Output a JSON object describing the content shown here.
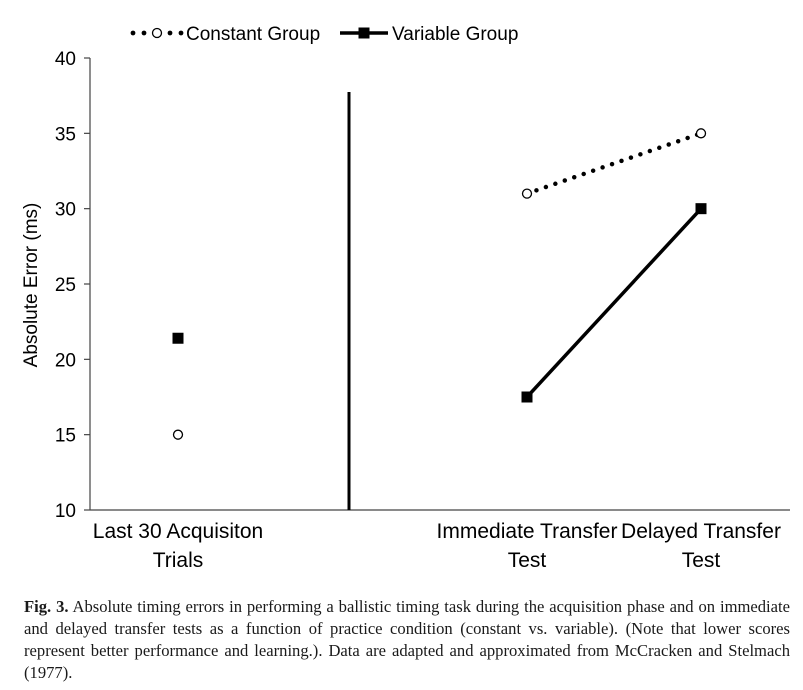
{
  "chart_data": {
    "type": "line",
    "title": "",
    "xlabel": "",
    "ylabel": "Absolute Error (ms)",
    "ylim": [
      10,
      40
    ],
    "yticks": [
      10,
      15,
      20,
      25,
      30,
      35,
      40
    ],
    "grid": false,
    "legend_position": "top",
    "categories": [
      [
        "Last 30 Acquisiton",
        "Trials"
      ],
      [
        "Immediate Transfer",
        "Test"
      ],
      [
        "Delayed Transfer",
        "Test"
      ]
    ],
    "series": [
      {
        "name": "Constant Group",
        "marker": "open-circle",
        "line_style": "dotted",
        "values": [
          15,
          31,
          35
        ],
        "connected_from_index": 1
      },
      {
        "name": "Variable Group",
        "marker": "filled-square",
        "line_style": "solid",
        "values": [
          21.4,
          17.5,
          30
        ],
        "connected_from_index": 1
      }
    ],
    "separator": "vertical line between acquisition and transfer phases"
  },
  "caption": {
    "label": "Fig. 3.",
    "text": "Absolute timing errors in performing a ballistic timing task during the acquisition phase and on immediate and delayed transfer tests as a function of practice condition (constant vs. variable). (Note that lower scores represent better performance and learning.). Data are adapted and approximated from McCracken and Stelmach (1977)."
  }
}
